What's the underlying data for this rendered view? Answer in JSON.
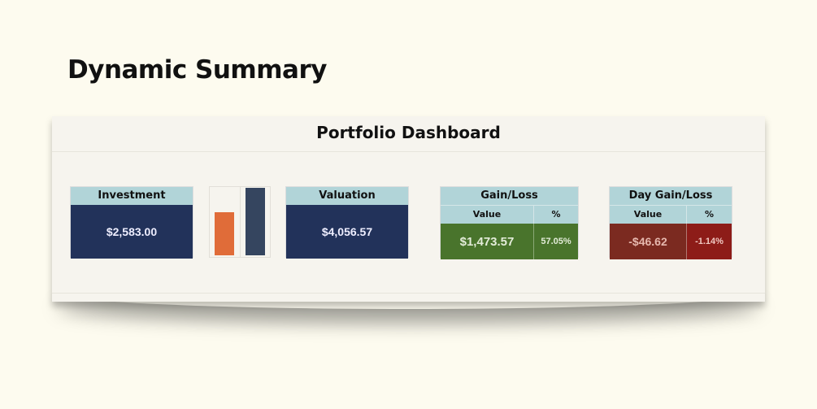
{
  "page_title": "Dynamic Summary",
  "dashboard": {
    "title": "Portfolio Dashboard",
    "investment": {
      "label": "Investment",
      "value": "$2,583.00"
    },
    "valuation": {
      "label": "Valuation",
      "value": "$4,056.57"
    },
    "mini_chart": {
      "investment": 2583.0,
      "valuation": 4056.57,
      "colors": {
        "investment": "#e06c39",
        "valuation": "#35455f"
      }
    },
    "gain_loss": {
      "label": "Gain/Loss",
      "value_header": "Value",
      "pct_header": "%",
      "value": "$1,473.57",
      "pct": "57.05%",
      "color": "#49742c"
    },
    "day_gain_loss": {
      "label": "Day Gain/Loss",
      "value_header": "Value",
      "pct_header": "%",
      "value": "-$46.62",
      "pct": "-1.14%",
      "color": "#7b2a20",
      "pct_color": "#8d1c18"
    }
  }
}
